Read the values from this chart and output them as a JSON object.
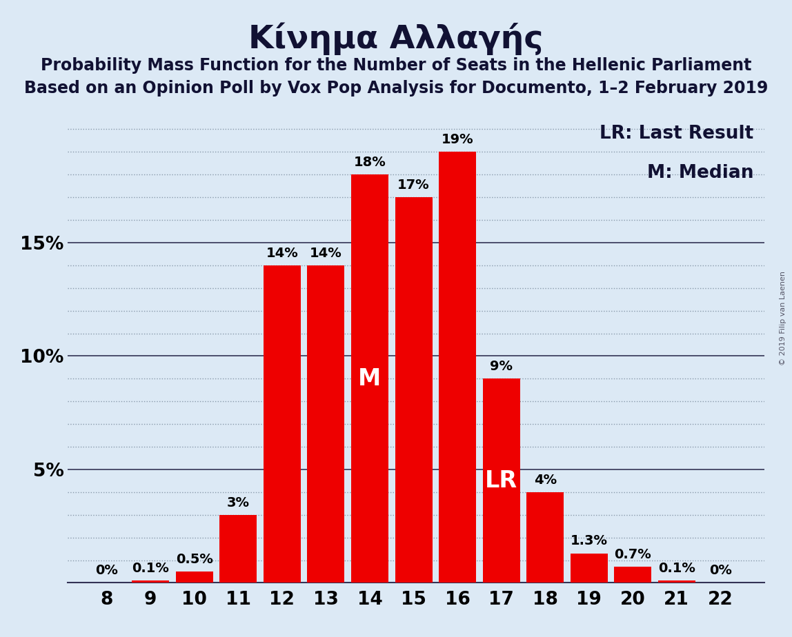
{
  "title": "Κίνημα Αλλαγής",
  "subtitle1": "Probability Mass Function for the Number of Seats in the Hellenic Parliament",
  "subtitle2": "Based on an Opinion Poll by Vox Pop Analysis for Documento, 1–2 February 2019",
  "watermark": "© 2019 Filip van Laenen",
  "categories": [
    8,
    9,
    10,
    11,
    12,
    13,
    14,
    15,
    16,
    17,
    18,
    19,
    20,
    21,
    22
  ],
  "values": [
    0.0,
    0.1,
    0.5,
    3.0,
    14.0,
    14.0,
    18.0,
    17.0,
    19.0,
    9.0,
    4.0,
    1.3,
    0.7,
    0.1,
    0.0
  ],
  "labels": [
    "0%",
    "0.1%",
    "0.5%",
    "3%",
    "14%",
    "14%",
    "18%",
    "17%",
    "19%",
    "9%",
    "4%",
    "1.3%",
    "0.7%",
    "0.1%",
    "0%"
  ],
  "bar_color": "#EE0000",
  "background_color": "#dce9f5",
  "label_color_outside": "#000000",
  "label_color_inside": "#ffffff",
  "median_seat": 14,
  "lr_seat": 17,
  "legend_lr": "LR: Last Result",
  "legend_m": "M: Median",
  "ylim": [
    0,
    20.5
  ],
  "yticks": [
    0,
    5,
    10,
    15
  ],
  "ytick_labels": [
    "",
    "5%",
    "10%",
    "15%"
  ],
  "solid_yticks": [
    5,
    10,
    15
  ],
  "dotted_yticks": [
    1,
    2,
    3,
    4,
    6,
    7,
    8,
    9,
    11,
    12,
    13,
    14,
    16,
    17,
    18,
    19,
    20
  ],
  "grid_color": "#8899aa",
  "title_fontsize": 34,
  "subtitle_fontsize": 17,
  "bar_label_fontsize": 14,
  "axis_fontsize": 19,
  "legend_fontsize": 19
}
